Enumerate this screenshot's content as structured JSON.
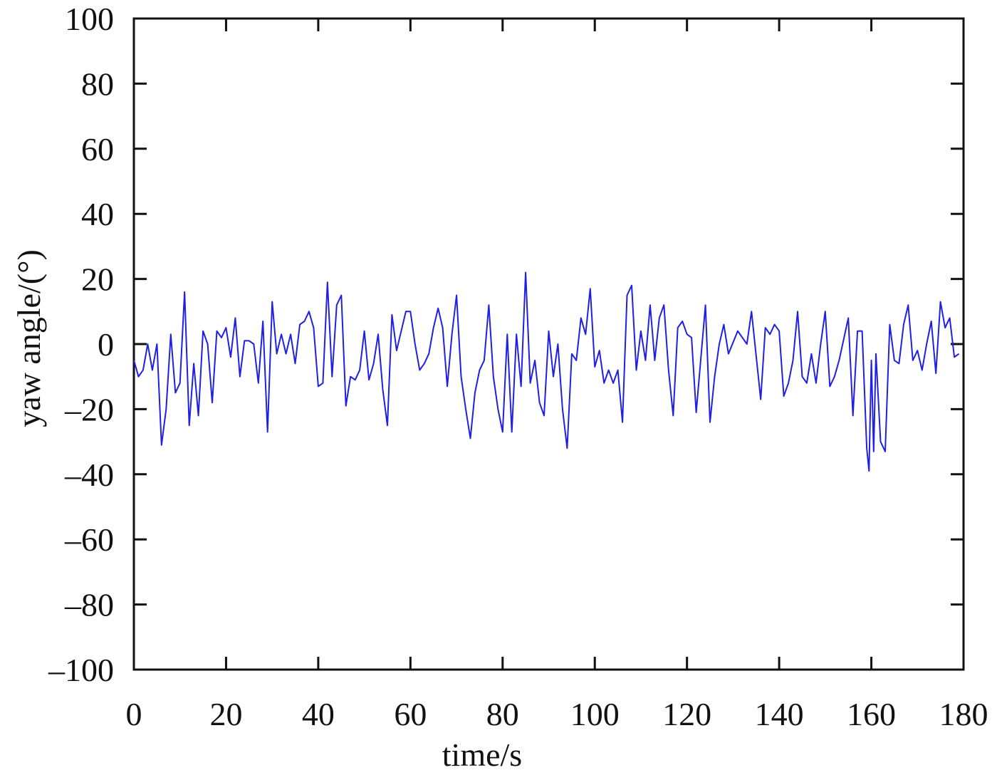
{
  "chart_data": {
    "type": "line",
    "xlabel": "time/s",
    "ylabel": "yaw angle/(°)",
    "xlim": [
      0,
      180
    ],
    "ylim": [
      -100,
      100
    ],
    "xticks": [
      0,
      20,
      40,
      60,
      80,
      100,
      120,
      140,
      160,
      180
    ],
    "yticks": [
      {
        "value": -100,
        "label": "–100"
      },
      {
        "value": -80,
        "label": "–80"
      },
      {
        "value": -60,
        "label": "–60"
      },
      {
        "value": -40,
        "label": "–40"
      },
      {
        "value": -20,
        "label": "–20"
      },
      0,
      20,
      40,
      60,
      80,
      100
    ],
    "x": [
      0,
      1,
      2,
      3,
      4,
      5,
      6,
      7,
      8,
      9,
      10,
      11,
      12,
      13,
      14,
      15,
      16,
      17,
      18,
      19,
      20,
      21,
      22,
      23,
      24,
      25,
      26,
      27,
      28,
      29,
      30,
      31,
      32,
      33,
      34,
      35,
      36,
      37,
      38,
      39,
      40,
      41,
      42,
      43,
      44,
      45,
      46,
      47,
      48,
      49,
      50,
      51,
      52,
      53,
      54,
      55,
      56,
      57,
      58,
      59,
      60,
      61,
      62,
      63,
      64,
      65,
      66,
      67,
      68,
      69,
      70,
      71,
      72,
      73,
      74,
      75,
      76,
      77,
      78,
      79,
      80,
      81,
      82,
      83,
      84,
      85,
      86,
      87,
      88,
      89,
      90,
      91,
      92,
      93,
      94,
      95,
      96,
      97,
      98,
      99,
      100,
      101,
      102,
      103,
      104,
      105,
      106,
      107,
      108,
      109,
      110,
      111,
      112,
      113,
      114,
      115,
      116,
      117,
      118,
      119,
      120,
      121,
      122,
      124,
      125,
      126,
      127,
      128,
      129,
      131,
      133,
      134,
      136,
      137,
      138,
      139,
      140,
      141,
      142,
      143,
      144,
      145,
      146,
      147,
      148,
      149,
      150,
      151,
      152,
      153,
      155,
      156,
      157,
      158,
      159,
      159.5,
      160,
      160.5,
      161,
      162,
      163,
      164,
      165,
      166,
      167,
      168,
      169,
      170,
      171,
      172,
      173,
      174,
      175,
      176,
      177,
      178,
      179
    ],
    "series": [
      {
        "name": "yaw angle",
        "color": "#1f1fe6",
        "values": [
          -5,
          -10,
          -8,
          0,
          -8,
          0,
          -31,
          -20,
          3,
          -15,
          -12,
          16,
          -25,
          -6,
          -22,
          4,
          0,
          -18,
          4,
          2,
          5,
          -4,
          8,
          -10,
          1,
          1,
          0,
          -12,
          7,
          -27,
          13,
          -3,
          3,
          -3,
          3,
          -6,
          6,
          7,
          10,
          5,
          -13,
          -12,
          19,
          -10,
          12,
          15,
          -19,
          -10,
          -11,
          -8,
          4,
          -11,
          -6,
          3,
          -14,
          -25,
          9,
          -2,
          4,
          10,
          10,
          0,
          -8,
          -6,
          -3,
          5,
          11,
          5,
          -13,
          3,
          15,
          -10,
          -20,
          -29,
          -15,
          -8,
          -5,
          12,
          -10,
          -20,
          -27,
          3,
          -27,
          3,
          -13,
          22,
          -12,
          -5,
          -18,
          -22,
          4,
          -10,
          0,
          -20,
          -32,
          -3,
          -5,
          8,
          3,
          17,
          -7,
          -2,
          -12,
          -8,
          -12,
          -8,
          -24,
          15,
          18,
          -8,
          4,
          -5,
          12,
          -5,
          8,
          12,
          -8,
          -22,
          5,
          7,
          3,
          2,
          -21,
          12,
          -24,
          -10,
          0,
          6,
          -3,
          4,
          0,
          10,
          -17,
          5,
          3,
          6,
          4,
          -16,
          -12,
          -5,
          10,
          -10,
          -12,
          -3,
          -12,
          0,
          10,
          -13,
          -10,
          -5,
          8,
          -22,
          4,
          4,
          -32,
          -39,
          -5,
          -33,
          -3,
          -30,
          -33,
          6,
          -5,
          -6,
          6,
          12,
          -5,
          -2,
          -8,
          0,
          7,
          -9,
          13,
          5,
          8,
          -4,
          -3
        ]
      }
    ]
  }
}
